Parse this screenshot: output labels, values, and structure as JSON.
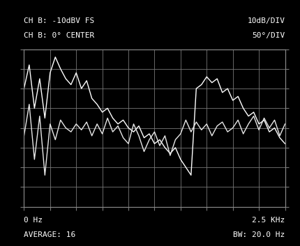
{
  "chart_data": {
    "type": "line",
    "annotations": [
      "CH B: -10dBV FS",
      "CH B: 0° CENTER",
      "10dB/DIV",
      "50°/DIV",
      "0 Hz",
      "AVERAGE: 16",
      "2.5 KHz",
      "BW: 20.0 Hz"
    ],
    "x": [
      0,
      50,
      100,
      150,
      200,
      250,
      300,
      350,
      400,
      450,
      500,
      550,
      600,
      650,
      700,
      750,
      800,
      850,
      900,
      950,
      1000,
      1050,
      1100,
      1150,
      1200,
      1250,
      1300,
      1350,
      1400,
      1450,
      1500,
      1550,
      1600,
      1650,
      1700,
      1750,
      1800,
      1850,
      1900,
      1950,
      2000,
      2050,
      2100,
      2150,
      2200,
      2250,
      2300,
      2350,
      2400,
      2450,
      2500
    ],
    "series": [
      {
        "color": "#ffffff",
        "values": [
          -30,
          -18,
          -40,
          -25,
          -45,
          -22,
          -14,
          -20,
          -25,
          -28,
          -22,
          -30,
          -26,
          -35,
          -38,
          -42,
          -40,
          -45,
          -48,
          -46,
          -50,
          -52,
          -49,
          -55,
          -53,
          -58,
          -56,
          -60,
          -63,
          -60,
          -66,
          -70,
          -74,
          -30,
          -28,
          -24,
          -27,
          -25,
          -32,
          -30,
          -36,
          -34,
          -40,
          -44,
          -42,
          -48,
          -46,
          -52,
          -50,
          -55,
          -58
        ]
      },
      {
        "color": "#e8e8e8",
        "axis": "y2",
        "values": [
          -20,
          60,
          -80,
          30,
          -120,
          10,
          -30,
          20,
          0,
          -10,
          10,
          -5,
          15,
          -20,
          10,
          -15,
          25,
          -10,
          5,
          -25,
          -40,
          10,
          -20,
          -60,
          -30,
          -10,
          -45,
          -20,
          -70,
          -30,
          -15,
          20,
          -10,
          15,
          -5,
          10,
          -20,
          5,
          15,
          -10,
          0,
          20,
          -15,
          10,
          30,
          -5,
          25,
          0,
          20,
          -20,
          10
        ]
      }
    ],
    "xlim": [
      0,
      2500
    ],
    "xticks": [
      0,
      250,
      500,
      750,
      1000,
      1250,
      1500,
      1750,
      2000,
      2250,
      2500
    ],
    "ylim": [
      -90,
      -10
    ],
    "yticks": [
      -90,
      -80,
      -70,
      -60,
      -50,
      -40,
      -30,
      -20,
      -10
    ],
    "y2lim": [
      -200,
      200
    ],
    "y2ticks": [
      -200,
      -150,
      -100,
      -50,
      0,
      50,
      100,
      150,
      200
    ],
    "grid": true,
    "tick_labels": false
  }
}
